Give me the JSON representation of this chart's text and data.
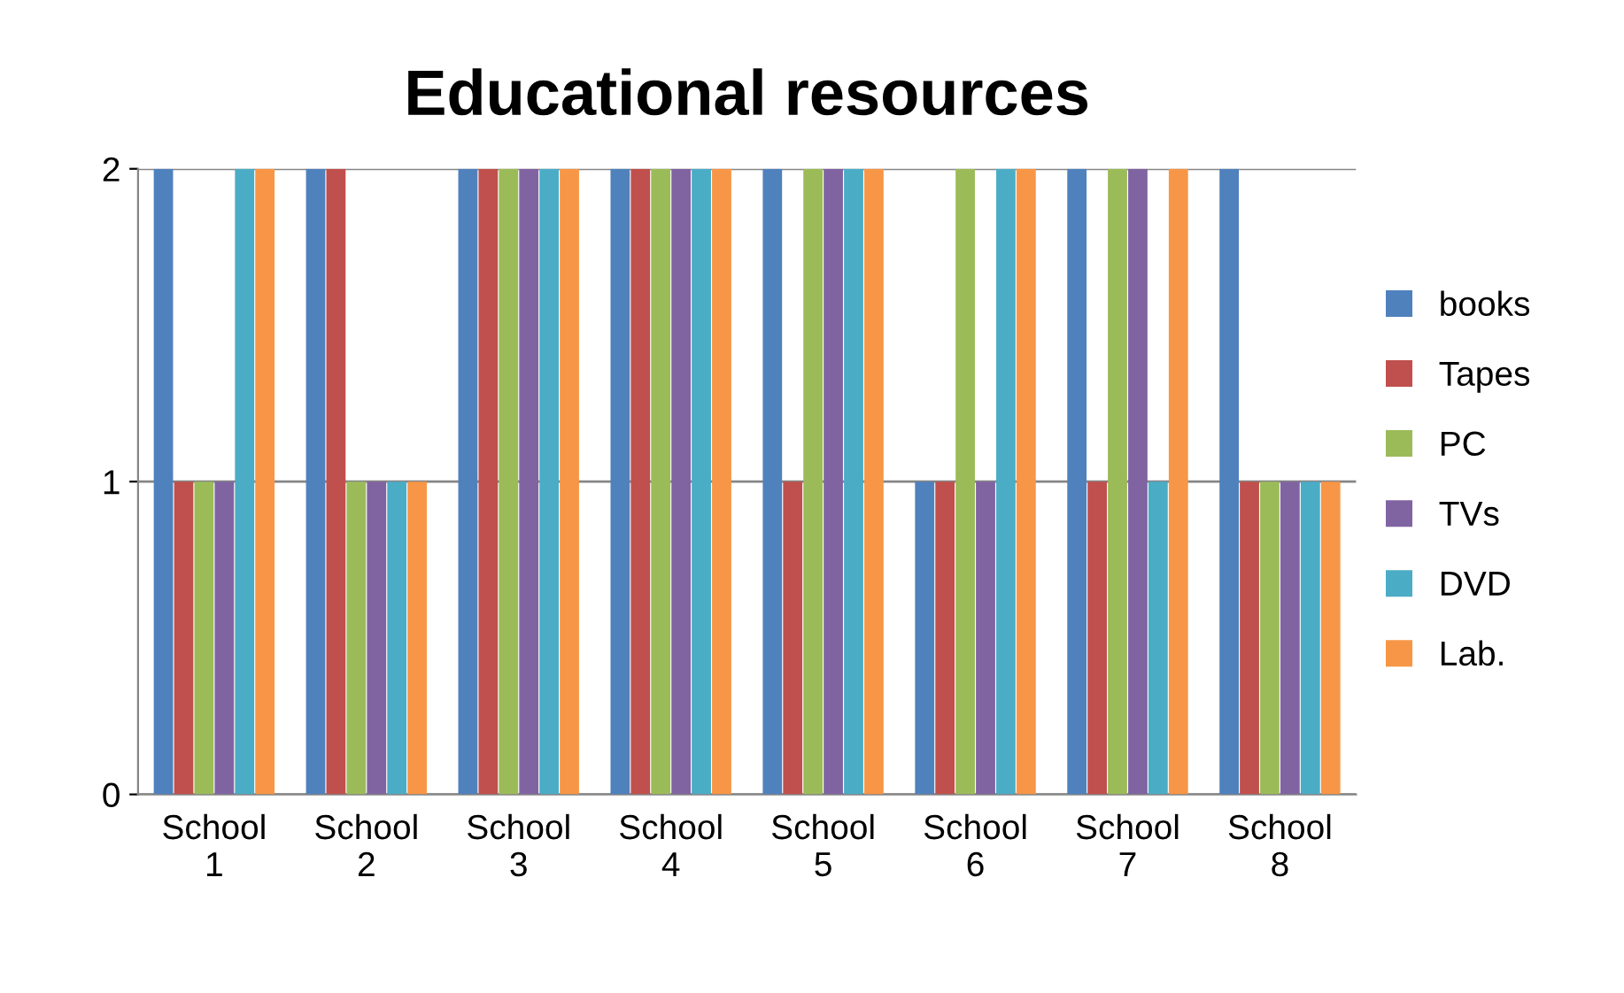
{
  "chart_data": {
    "type": "bar",
    "title": "Educational resources",
    "categories": [
      "School\n1",
      "School\n2",
      "School\n3",
      "School\n4",
      "School\n5",
      "School\n6",
      "School\n7",
      "School\n8"
    ],
    "series": [
      {
        "name": "books",
        "color": "#4f81bd",
        "values": [
          2,
          2,
          2,
          2,
          2,
          1,
          2,
          2
        ]
      },
      {
        "name": "Tapes",
        "color": "#c0504d",
        "values": [
          1,
          2,
          2,
          2,
          1,
          1,
          1,
          1
        ]
      },
      {
        "name": "PC",
        "color": "#9bbb59",
        "values": [
          1,
          1,
          2,
          2,
          2,
          2,
          2,
          1
        ]
      },
      {
        "name": "TVs",
        "color": "#8064a2",
        "values": [
          1,
          1,
          2,
          2,
          2,
          1,
          2,
          1
        ]
      },
      {
        "name": "DVD",
        "color": "#4bacc6",
        "values": [
          2,
          1,
          2,
          2,
          2,
          2,
          1,
          1
        ]
      },
      {
        "name": "Lab.",
        "color": "#f79646",
        "values": [
          2,
          1,
          2,
          2,
          2,
          2,
          2,
          1
        ]
      }
    ],
    "ylim": [
      0,
      2
    ],
    "yticks": [
      0,
      1,
      2
    ],
    "grid": "y",
    "legend": "right"
  }
}
